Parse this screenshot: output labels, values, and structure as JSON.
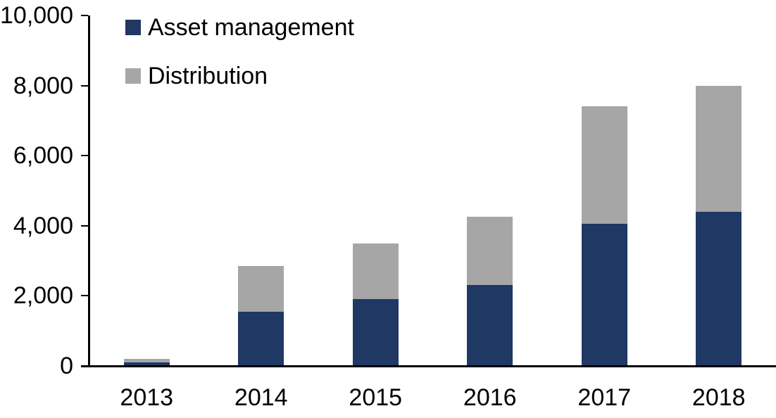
{
  "chart_data": {
    "type": "bar",
    "stacked": true,
    "title": "",
    "xlabel": "",
    "ylabel": "",
    "categories": [
      "2013",
      "2014",
      "2015",
      "2016",
      "2017",
      "2018"
    ],
    "series": [
      {
        "name": "Asset management",
        "color": "#1F3864",
        "values": [
          100,
          1550,
          1900,
          2300,
          4050,
          4400
        ]
      },
      {
        "name": "Distribution",
        "color": "#A6A6A6",
        "values": [
          100,
          1300,
          1600,
          1950,
          3350,
          3600
        ]
      }
    ],
    "totals": [
      200,
      2850,
      3500,
      4250,
      7400,
      8000
    ],
    "ylim": [
      0,
      10000
    ],
    "ytick_interval": 2000,
    "yticks": [
      "0",
      "2,000",
      "4,000",
      "6,000",
      "8,000",
      "10,000"
    ],
    "grid": false,
    "legend_position": "top-left"
  },
  "colors": {
    "axis": "#000000",
    "background": "#FFFFFF",
    "text": "#000000"
  }
}
